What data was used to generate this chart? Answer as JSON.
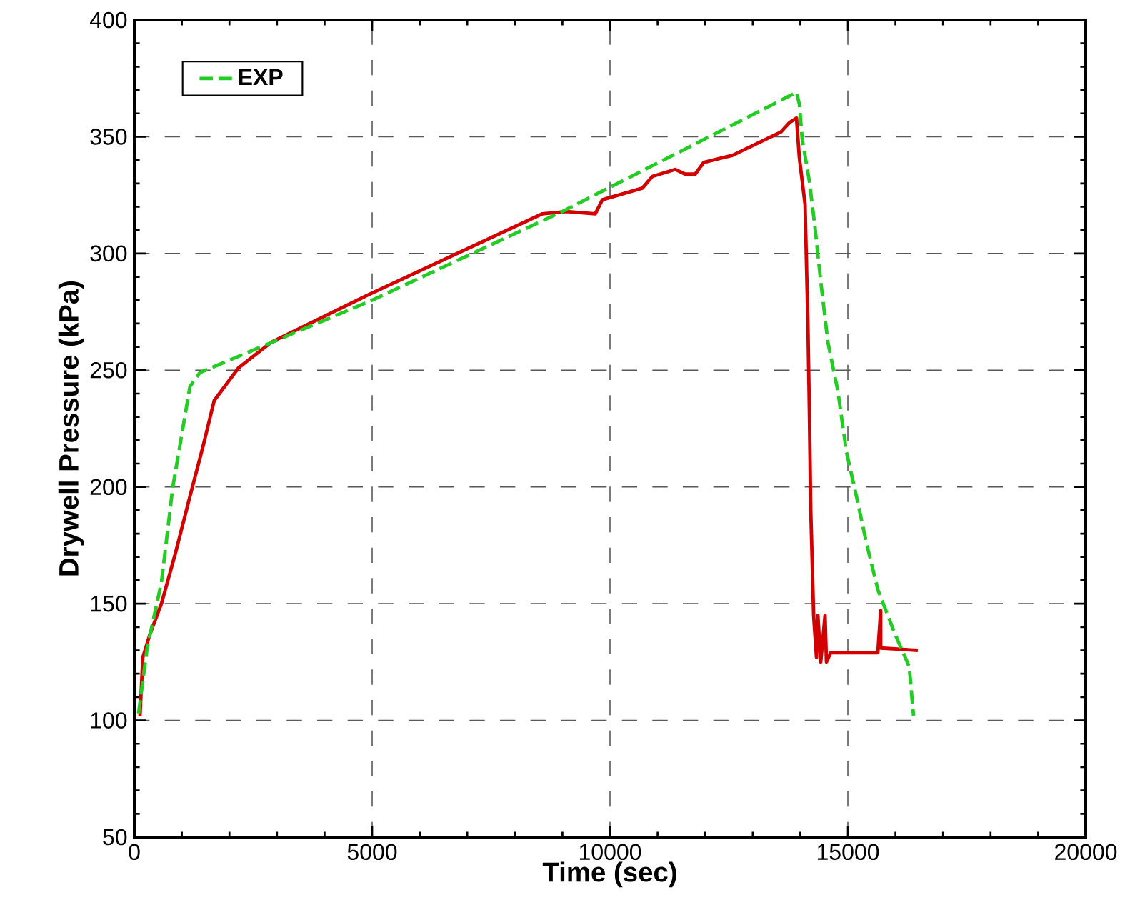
{
  "chart_data": {
    "type": "line",
    "xlabel": "Time (sec)",
    "ylabel": "Drywell Pressure (kPa)",
    "xlim": [
      0,
      20000
    ],
    "ylim": [
      50,
      400
    ],
    "xticks": [
      0,
      5000,
      10000,
      15000,
      20000
    ],
    "yticks": [
      50,
      100,
      150,
      200,
      250,
      300,
      350,
      400
    ],
    "grid": true,
    "legend": "top left",
    "series": [
      {
        "color": "#d40000",
        "line_style": "solid",
        "x": [
          120,
          180,
          330,
          570,
          870,
          1170,
          1440,
          1680,
          2190,
          2880,
          4890,
          8580,
          9090,
          9690,
          9840,
          10680,
          10890,
          11370,
          11580,
          11790,
          11970,
          12570,
          13590,
          13770,
          13920,
          13980,
          14100,
          14160,
          14190,
          14220,
          14250,
          14280,
          14340,
          14370,
          14430,
          14520,
          14550,
          14640,
          15630,
          15690,
          15690,
          16470
        ],
        "values": [
          102,
          127,
          137,
          150,
          172,
          196,
          217,
          237,
          251,
          262,
          282,
          317,
          318,
          317,
          323,
          328,
          333,
          336,
          334,
          334,
          339,
          342,
          352,
          356,
          358,
          341,
          321,
          270,
          233,
          190,
          168,
          145,
          127,
          145,
          125,
          145,
          125,
          129,
          129,
          147,
          131,
          130
        ]
      },
      {
        "name": "EXP",
        "color": "#22cc22",
        "line_style": "dashed",
        "x": [
          90,
          270,
          570,
          810,
          1170,
          1380,
          5000,
          9000,
          13920,
          13980,
          14040,
          14190,
          14310,
          14430,
          14580,
          14790,
          14970,
          15180,
          15390,
          15630,
          15990,
          16290,
          16380
        ],
        "values": [
          103,
          131,
          159,
          200,
          243,
          249,
          280,
          318,
          369,
          364,
          349,
          331,
          311,
          288,
          262,
          241,
          215,
          196,
          176,
          156,
          137,
          123,
          102
        ]
      }
    ]
  }
}
